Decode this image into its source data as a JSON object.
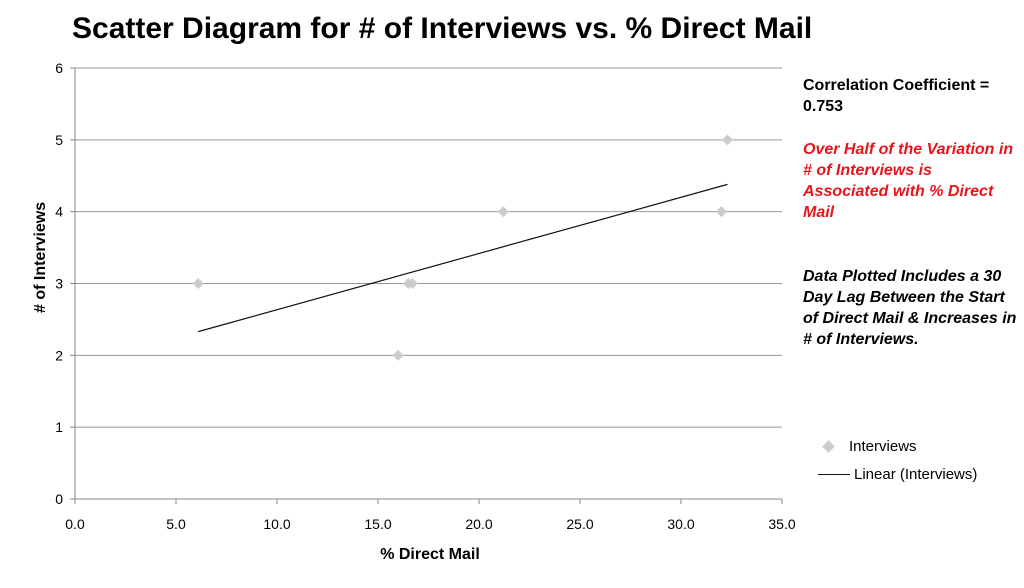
{
  "chart_data": {
    "type": "scatter",
    "title": "Scatter Diagram for # of Interviews vs. % Direct Mail",
    "xlabel": "% Direct Mail",
    "ylabel": "# of Interviews",
    "xlim": [
      0,
      35
    ],
    "ylim": [
      0,
      6
    ],
    "x_ticks": [
      "0.0",
      "5.0",
      "10.0",
      "15.0",
      "20.0",
      "25.0",
      "30.0",
      "35.0"
    ],
    "y_ticks": [
      "0",
      "1",
      "2",
      "3",
      "4",
      "5",
      "6"
    ],
    "grid": "horizontal",
    "legend_position": "right",
    "series": [
      {
        "name": "Interviews",
        "marker": "diamond",
        "color": "#cccccc",
        "points": [
          {
            "x": 6.1,
            "y": 3
          },
          {
            "x": 16.0,
            "y": 2
          },
          {
            "x": 16.5,
            "y": 3
          },
          {
            "x": 16.7,
            "y": 3
          },
          {
            "x": 21.2,
            "y": 4
          },
          {
            "x": 32.0,
            "y": 4
          },
          {
            "x": 32.3,
            "y": 5
          }
        ]
      },
      {
        "name": "Linear (Interviews)",
        "type": "line",
        "color": "#111111",
        "points": [
          {
            "x": 6.1,
            "y": 2.33
          },
          {
            "x": 32.3,
            "y": 4.38
          }
        ]
      }
    ]
  },
  "annotations": {
    "correlation": "Correlation Coefficient = 0.753",
    "variation": "Over Half of the Variation in # of Interviews is Associated with % Direct Mail",
    "lag_note": "Data Plotted Includes a 30 Day Lag Between the Start of Direct Mail & Increases in  # of Interviews."
  },
  "legend": {
    "points_label": "Interviews",
    "line_label": "Linear (Interviews)"
  },
  "colors": {
    "marker": "#cccccc",
    "trendline": "#111111",
    "grid": "#999999",
    "highlight_text": "#e8141c"
  }
}
